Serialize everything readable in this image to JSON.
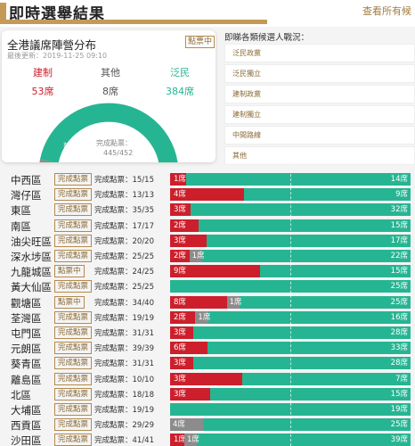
{
  "header": {
    "title": "即時選舉結果",
    "link": "查看所有候"
  },
  "seat_card": {
    "title": "全港議席陣營分布",
    "badge": "點票中",
    "updated": "最後更新：2019-11-25 09:10",
    "camps": [
      {
        "name": "建制",
        "seats": "53席",
        "color": "#cc1f2b"
      },
      {
        "name": "其他",
        "seats": "8席",
        "color": "#555555"
      },
      {
        "name": "泛民",
        "seats": "384席",
        "color": "#26b592"
      }
    ],
    "gauge": {
      "total": 452,
      "estab": 53,
      "other": 8,
      "pandem": 384,
      "label_estab": "建制",
      "label_gauge": "完成點票：",
      "counted": "445/452"
    }
  },
  "candidates": {
    "title": "即睇各類候選人戰況：",
    "items": [
      "泛民政黨",
      "泛民獨立",
      "建制政黨",
      "建制獨立",
      "中間路線",
      "其他"
    ]
  },
  "colors": {
    "estab": "#cc1f2b",
    "other": "#8c8c8c",
    "pandem": "#26b592",
    "accent": "#c49a56"
  },
  "districts": [
    {
      "name": "中西區",
      "status": "完成點票",
      "progress": "完成點票：15/15",
      "estab": 1,
      "other": 0,
      "pandem": 14,
      "estab_label": "1席",
      "other_label": "",
      "pandem_label": "14席"
    },
    {
      "name": "灣仔區",
      "status": "完成點票",
      "progress": "完成點票：13/13",
      "estab": 4,
      "other": 0,
      "pandem": 9,
      "estab_label": "4席",
      "other_label": "",
      "pandem_label": "9席"
    },
    {
      "name": "東區",
      "status": "完成點票",
      "progress": "完成點票：35/35",
      "estab": 3,
      "other": 0,
      "pandem": 32,
      "estab_label": "3席",
      "other_label": "",
      "pandem_label": "32席"
    },
    {
      "name": "南區",
      "status": "完成點票",
      "progress": "完成點票：17/17",
      "estab": 2,
      "other": 0,
      "pandem": 15,
      "estab_label": "2席",
      "other_label": "",
      "pandem_label": "15席"
    },
    {
      "name": "油尖旺區",
      "status": "完成點票",
      "progress": "完成點票：20/20",
      "estab": 3,
      "other": 0,
      "pandem": 17,
      "estab_label": "3席",
      "other_label": "",
      "pandem_label": "17席"
    },
    {
      "name": "深水埗區",
      "status": "完成點票",
      "progress": "完成點票：25/25",
      "estab": 2,
      "other": 1,
      "pandem": 22,
      "estab_label": "2席",
      "other_label": "1席",
      "pandem_label": "22席"
    },
    {
      "name": "九龍城區",
      "status": "點票中",
      "progress": "完成點票：24/25",
      "estab": 9,
      "other": 0,
      "pandem": 15,
      "estab_label": "9席",
      "other_label": "",
      "pandem_label": "15席"
    },
    {
      "name": "黃大仙區",
      "status": "完成點票",
      "progress": "完成點票：25/25",
      "estab": 0,
      "other": 0,
      "pandem": 25,
      "estab_label": "",
      "other_label": "",
      "pandem_label": "25席"
    },
    {
      "name": "觀塘區",
      "status": "點票中",
      "progress": "完成點票：34/40",
      "estab": 8,
      "other": 1,
      "pandem": 25,
      "estab_label": "8席",
      "other_label": "1席",
      "pandem_label": "25席"
    },
    {
      "name": "荃灣區",
      "status": "完成點票",
      "progress": "完成點票：19/19",
      "estab": 2,
      "other": 1,
      "pandem": 16,
      "estab_label": "2席",
      "other_label": "1席",
      "pandem_label": "16席"
    },
    {
      "name": "屯門區",
      "status": "完成點票",
      "progress": "完成點票：31/31",
      "estab": 3,
      "other": 0,
      "pandem": 28,
      "estab_label": "3席",
      "other_label": "",
      "pandem_label": "28席"
    },
    {
      "name": "元朗區",
      "status": "完成點票",
      "progress": "完成點票：39/39",
      "estab": 6,
      "other": 0,
      "pandem": 33,
      "estab_label": "6席",
      "other_label": "",
      "pandem_label": "33席"
    },
    {
      "name": "葵青區",
      "status": "完成點票",
      "progress": "完成點票：31/31",
      "estab": 3,
      "other": 0,
      "pandem": 28,
      "estab_label": "3席",
      "other_label": "",
      "pandem_label": "28席"
    },
    {
      "name": "離島區",
      "status": "完成點票",
      "progress": "完成點票：10/10",
      "estab": 3,
      "other": 0,
      "pandem": 7,
      "estab_label": "3席",
      "other_label": "",
      "pandem_label": "7席"
    },
    {
      "name": "北區",
      "status": "完成點票",
      "progress": "完成點票：18/18",
      "estab": 3,
      "other": 0,
      "pandem": 15,
      "estab_label": "3席",
      "other_label": "",
      "pandem_label": "15席"
    },
    {
      "name": "大埔區",
      "status": "完成點票",
      "progress": "完成點票：19/19",
      "estab": 0,
      "other": 0,
      "pandem": 19,
      "estab_label": "",
      "other_label": "",
      "pandem_label": "19席"
    },
    {
      "name": "西貢區",
      "status": "完成點票",
      "progress": "完成點票：29/29",
      "estab": 0,
      "other": 4,
      "pandem": 25,
      "estab_label": "",
      "other_label": "4席",
      "pandem_label": "25席"
    },
    {
      "name": "沙田區",
      "status": "完成點票",
      "progress": "完成點票：41/41",
      "estab": 1,
      "other": 1,
      "pandem": 39,
      "estab_label": "1席",
      "other_label": "1席",
      "pandem_label": "39席"
    }
  ]
}
